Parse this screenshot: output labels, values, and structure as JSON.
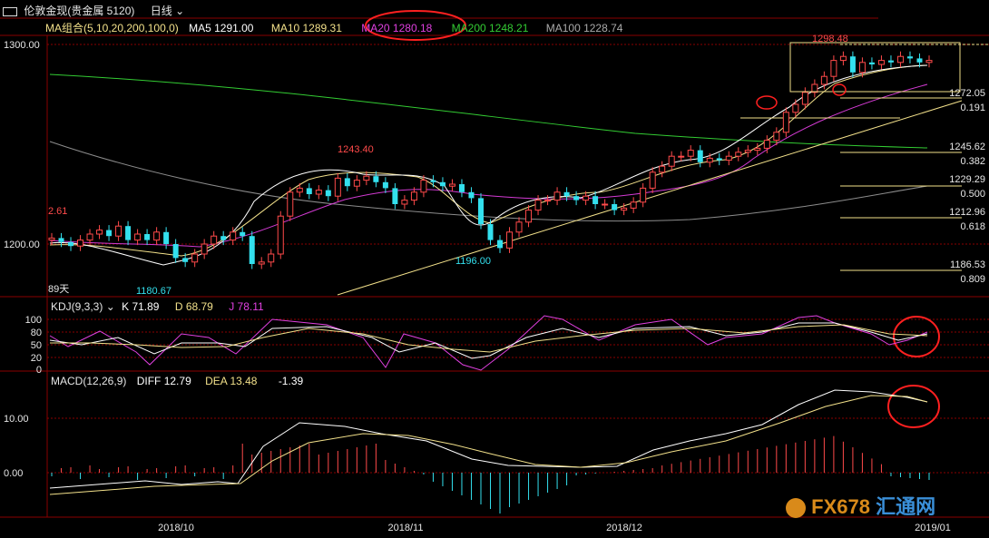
{
  "window": {
    "icon": "window-icon",
    "title": "伦敦金现(贵金属 5120)",
    "period": "日线",
    "period_icon": "chevron-down-icon"
  },
  "ma_panel": {
    "label": "MA组合(5,10,20,200,100,0)",
    "items": [
      {
        "text": "MA5 1291.00",
        "color": "#ffffff"
      },
      {
        "text": "MA10 1289.31",
        "color": "#f2e08a"
      },
      {
        "text": "MA20 1280.18",
        "color": "#e040e0"
      },
      {
        "text": "MA200 1248.21",
        "color": "#33cc33"
      },
      {
        "text": "MA100 1228.74",
        "color": "#aaaaaa"
      }
    ]
  },
  "price_axis": {
    "ticks": [
      "1300.00",
      "1200.00"
    ]
  },
  "price_annotations": {
    "high": "1298.48",
    "peak_nov": "1243.40",
    "low_nov": "1196.00",
    "low_oct": "1180.67",
    "left_cut": "2.61",
    "days": "89天"
  },
  "fibonacci": [
    {
      "price": "1272.05",
      "ratio": "0.191"
    },
    {
      "price": "1245.62",
      "ratio": "0.382"
    },
    {
      "price": "1229.29",
      "ratio": "0.500"
    },
    {
      "price": "1212.96",
      "ratio": "0.618"
    },
    {
      "price": "1186.53",
      "ratio": "0.809"
    }
  ],
  "kdj": {
    "label": "KDJ(9,3,3)",
    "k": "K 71.89",
    "d": "D 68.79",
    "j": "J 78.11",
    "ticks": [
      "100",
      "80",
      "50",
      "20",
      "0"
    ]
  },
  "macd": {
    "label": "MACD(12,26,9)",
    "diff": "DIFF 12.79",
    "dea": "DEA 13.48",
    "macd": "-1.39",
    "ticks": [
      "10.00",
      "0.00"
    ]
  },
  "x_axis": {
    "labels": [
      "2018/10",
      "2018/11",
      "2018/12",
      "2019/01"
    ]
  },
  "watermark": {
    "text": "FX678",
    "cn": "汇通网"
  },
  "colors": {
    "up": "#ff4a4a",
    "down": "#33e0ee",
    "grid": "#8a0000",
    "k": "#ffffff",
    "d": "#f2e08a",
    "j": "#e040e0"
  },
  "chart_data": {
    "type": "candlestick",
    "approx_close": [
      1203,
      1201,
      1199,
      1202,
      1205,
      1207,
      1204,
      1209,
      1202,
      1205,
      1202,
      1206,
      1200,
      1193,
      1191,
      1195,
      1200,
      1204,
      1202,
      1206,
      1204,
      1190,
      1191,
      1195,
      1214,
      1226,
      1228,
      1225,
      1227,
      1224,
      1233,
      1229,
      1232,
      1234,
      1231,
      1228,
      1220,
      1222,
      1226,
      1232,
      1231,
      1229,
      1230,
      1226,
      1223,
      1210,
      1202,
      1198,
      1206,
      1211,
      1217,
      1222,
      1222,
      1226,
      1224,
      1222,
      1224,
      1220,
      1220,
      1217,
      1218,
      1221,
      1228,
      1236,
      1239,
      1244,
      1244,
      1247,
      1241,
      1243,
      1242,
      1244,
      1246,
      1247,
      1248,
      1252,
      1256,
      1266,
      1270,
      1276,
      1280,
      1284,
      1292,
      1294,
      1286,
      1291,
      1290,
      1292,
      1291,
      1294,
      1293,
      1291,
      1292
    ],
    "ma_lines": [
      "MA5",
      "MA10",
      "MA20",
      "MA200",
      "MA100"
    ],
    "kdj_latest": {
      "K": 71.89,
      "D": 68.79,
      "J": 78.11
    },
    "macd_latest": {
      "DIFF": 12.79,
      "DEA": 13.48,
      "MACD": -1.39
    }
  }
}
